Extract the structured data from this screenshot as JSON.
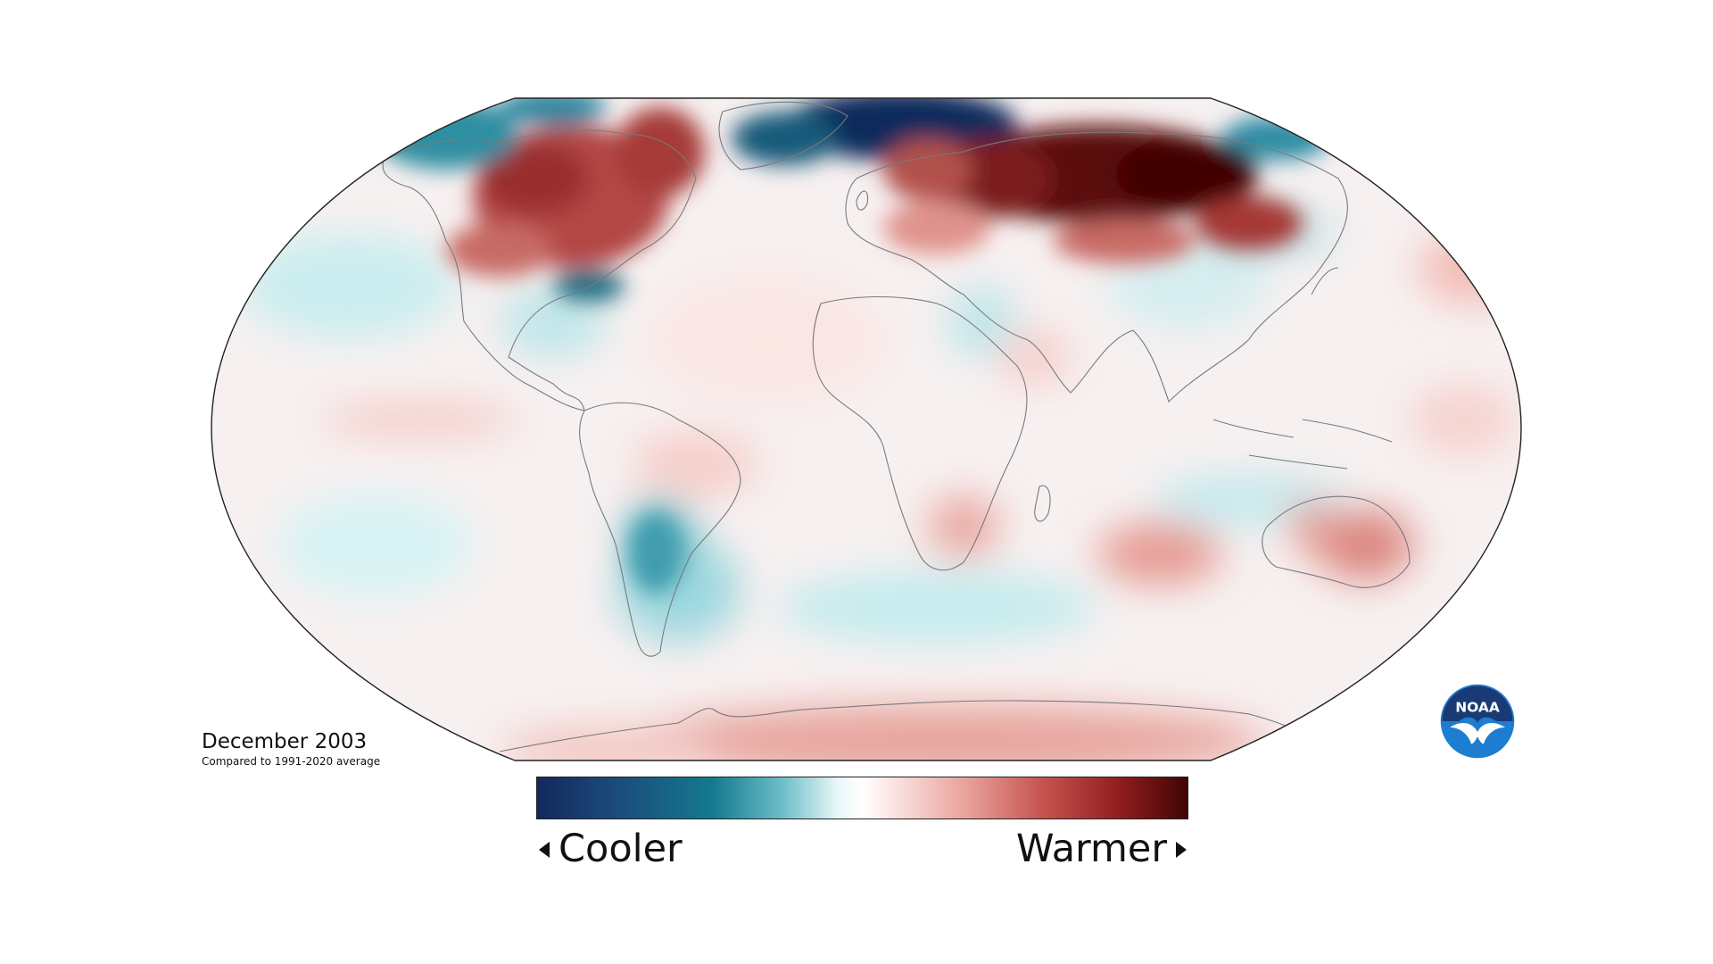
{
  "map": {
    "projection": "robinson",
    "caption": {
      "title": "December 2003",
      "subtitle": "Compared to 1991-2020 average"
    },
    "legend": {
      "left_label": "Cooler",
      "right_label": "Warmer",
      "colors": [
        "#13285d",
        "#1b4b7b",
        "#137a8f",
        "#6fc0c9",
        "#e6f6f7",
        "#ffffff",
        "#f8dcd9",
        "#e9a19b",
        "#c4524d",
        "#8f1c1c",
        "#3f0505"
      ]
    },
    "logo": {
      "text": "NOAA",
      "icon": "noaa-logo-icon"
    }
  }
}
